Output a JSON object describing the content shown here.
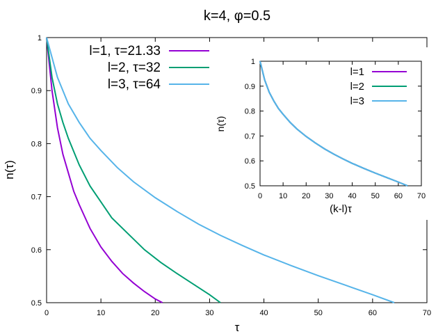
{
  "chart_data": {
    "title": "k=4, φ=0.5",
    "main": {
      "type": "line",
      "xlabel": "τ",
      "ylabel": "n(τ)",
      "xlim": [
        0,
        70
      ],
      "ylim": [
        0.5,
        1
      ],
      "xticks": [
        0,
        10,
        20,
        30,
        40,
        50,
        60,
        70
      ],
      "yticks": [
        0.5,
        0.6,
        0.7,
        0.8,
        0.9,
        1
      ],
      "ytick_labels": [
        "0.5",
        "0.6",
        "0.7",
        "0.8",
        "0.9",
        "1"
      ],
      "grid": false,
      "legend_position": "top-left",
      "series": [
        {
          "name": "l=1, τ=21.33",
          "color": "#9400d3",
          "x": [
            0,
            1,
            2,
            3,
            4,
            5,
            6,
            8,
            10,
            12,
            14,
            16,
            18,
            20,
            21.33
          ],
          "y": [
            1.0,
            0.9,
            0.83,
            0.78,
            0.745,
            0.71,
            0.685,
            0.64,
            0.605,
            0.578,
            0.555,
            0.537,
            0.521,
            0.507,
            0.5
          ]
        },
        {
          "name": "l=2, τ=32",
          "color": "#009e73",
          "x": [
            0,
            1,
            2,
            3,
            4,
            6,
            8,
            10,
            12,
            15,
            18,
            21,
            24,
            27,
            30,
            32
          ],
          "y": [
            1.0,
            0.925,
            0.875,
            0.84,
            0.81,
            0.76,
            0.72,
            0.69,
            0.66,
            0.63,
            0.6,
            0.576,
            0.555,
            0.535,
            0.515,
            0.5
          ]
        },
        {
          "name": "l=3, τ=64",
          "color": "#56b4e9",
          "x": [
            0,
            2,
            4,
            6,
            8,
            10,
            13,
            16,
            20,
            24,
            28,
            32,
            36,
            40,
            45,
            50,
            55,
            60,
            64
          ],
          "y": [
            1.0,
            0.925,
            0.875,
            0.84,
            0.81,
            0.787,
            0.755,
            0.728,
            0.698,
            0.672,
            0.648,
            0.627,
            0.608,
            0.59,
            0.57,
            0.551,
            0.533,
            0.515,
            0.5
          ]
        }
      ]
    },
    "inset": {
      "type": "line",
      "xlabel": "(k-l)τ",
      "ylabel": "n(τ)",
      "xlim": [
        0,
        70
      ],
      "ylim": [
        0.5,
        1
      ],
      "xticks": [
        0,
        10,
        20,
        30,
        40,
        50,
        60,
        70
      ],
      "yticks": [
        0.5,
        0.6,
        0.7,
        0.8,
        0.9,
        1
      ],
      "ytick_labels": [
        "0.5",
        "0.6",
        "0.7",
        "0.8",
        "0.9",
        "1"
      ],
      "grid": false,
      "legend_position": "top-right",
      "series": [
        {
          "name": "l=1",
          "color": "#9400d3"
        },
        {
          "name": "l=2",
          "color": "#009e73"
        },
        {
          "name": "l=3",
          "color": "#56b4e9"
        }
      ],
      "collapsed_curve": {
        "x": [
          0,
          2,
          4,
          6,
          8,
          10,
          13,
          16,
          20,
          24,
          28,
          32,
          36,
          40,
          45,
          50,
          55,
          60,
          64
        ],
        "y": [
          1.0,
          0.925,
          0.875,
          0.84,
          0.81,
          0.787,
          0.755,
          0.728,
          0.698,
          0.672,
          0.648,
          0.627,
          0.608,
          0.59,
          0.57,
          0.551,
          0.533,
          0.515,
          0.5
        ]
      }
    }
  }
}
